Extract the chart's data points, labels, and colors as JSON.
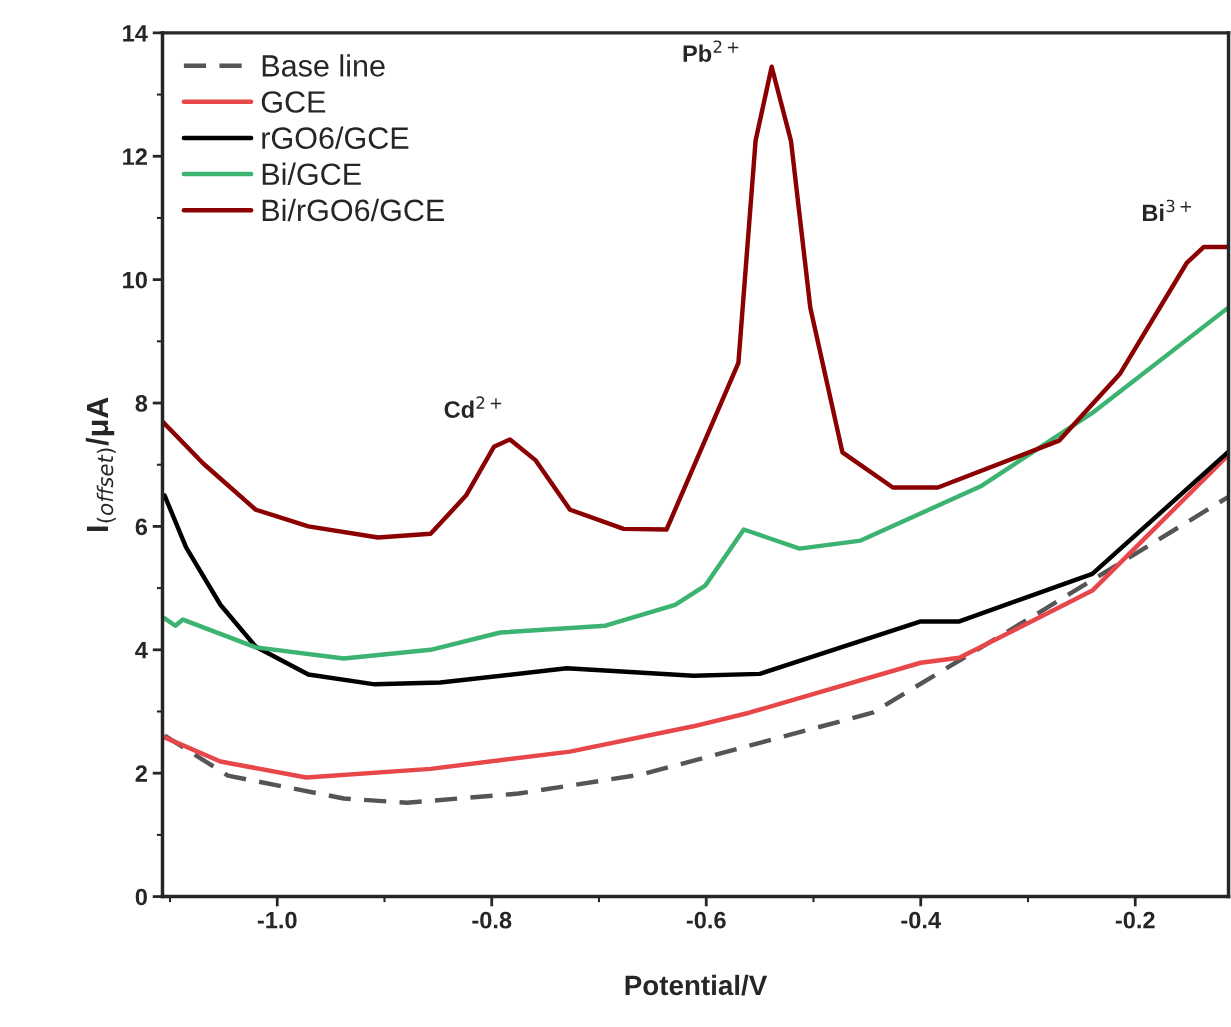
{
  "chart_data": {
    "type": "line",
    "xlabel": "Potential/V",
    "ylabel": "I$_{(offset)}$/μA",
    "xlim": [
      -1.107,
      -0.113
    ],
    "ylim": [
      0,
      14
    ],
    "xticks": [
      {
        "value": -1.0,
        "label": "-1.0"
      },
      {
        "value": -0.8,
        "label": "-0.8"
      },
      {
        "value": -0.6,
        "label": "-0.6"
      },
      {
        "value": -0.4,
        "label": "-0.4"
      },
      {
        "value": -0.2,
        "label": "-0.2"
      }
    ],
    "yticks": [
      0,
      2,
      4,
      6,
      8,
      10,
      12,
      14
    ],
    "grid": false,
    "legend": "top left",
    "series": [
      {
        "name": "Base line",
        "color": "#555555",
        "line_style": "dashed",
        "x": [
          -1.105,
          -1.046,
          -0.938,
          -0.879,
          -0.775,
          -0.66,
          -0.445,
          -0.29,
          -0.113
        ],
        "values": [
          2.61,
          1.96,
          1.59,
          1.52,
          1.67,
          1.98,
          2.98,
          4.6,
          6.48
        ]
      },
      {
        "name": "GCE",
        "color": "#e8474a",
        "x": [
          -1.105,
          -1.053,
          -0.973,
          -0.857,
          -0.727,
          -0.612,
          -0.56,
          -0.4,
          -0.364,
          -0.24,
          -0.113
        ],
        "values": [
          2.58,
          2.19,
          1.93,
          2.07,
          2.35,
          2.76,
          2.98,
          3.79,
          3.87,
          4.96,
          7.16
        ]
      },
      {
        "name": "rGO6/GCE",
        "color": "#000000",
        "x": [
          -1.105,
          -1.085,
          -1.053,
          -1.02,
          -0.971,
          -0.909,
          -0.848,
          -0.73,
          -0.612,
          -0.55,
          -0.4,
          -0.364,
          -0.24,
          -0.113
        ],
        "values": [
          6.5,
          5.66,
          4.73,
          4.05,
          3.6,
          3.44,
          3.47,
          3.7,
          3.58,
          3.61,
          4.46,
          4.46,
          5.23,
          7.21
        ]
      },
      {
        "name": "Bi/GCE",
        "color": "#3cb371",
        "x": [
          -1.105,
          -1.095,
          -1.088,
          -1.02,
          -0.938,
          -0.857,
          -0.792,
          -0.694,
          -0.629,
          -0.601,
          -0.565,
          -0.513,
          -0.456,
          -0.343,
          -0.24,
          -0.113
        ],
        "values": [
          4.51,
          4.39,
          4.49,
          4.04,
          3.86,
          4.0,
          4.28,
          4.39,
          4.73,
          5.04,
          5.95,
          5.64,
          5.77,
          6.66,
          7.84,
          9.55
        ]
      },
      {
        "name": "Bi/rGO6/GCE",
        "color": "#8b0000",
        "x": [
          -1.107,
          -1.069,
          -1.02,
          -0.971,
          -0.906,
          -0.857,
          -0.824,
          -0.798,
          -0.783,
          -0.759,
          -0.727,
          -0.677,
          -0.637,
          -0.57,
          -0.554,
          -0.539,
          -0.521,
          -0.503,
          -0.473,
          -0.426,
          -0.384,
          -0.271,
          -0.214,
          -0.152,
          -0.136,
          -0.113
        ],
        "values": [
          7.7,
          7.02,
          6.27,
          6.0,
          5.82,
          5.88,
          6.5,
          7.29,
          7.41,
          7.07,
          6.27,
          5.96,
          5.95,
          8.65,
          12.25,
          13.45,
          12.25,
          9.55,
          7.2,
          6.63,
          6.63,
          7.39,
          8.48,
          10.27,
          10.53,
          10.53
        ]
      }
    ],
    "annotations": [
      {
        "text": "Cd$^{2+}$",
        "x": -0.783,
        "y": 7.41
      },
      {
        "text": "Pb$^{2+}$",
        "x": -0.539,
        "y": 13.45
      },
      {
        "text": "Bi$^{3+}$",
        "x": -0.136,
        "y": 10.53
      }
    ]
  }
}
